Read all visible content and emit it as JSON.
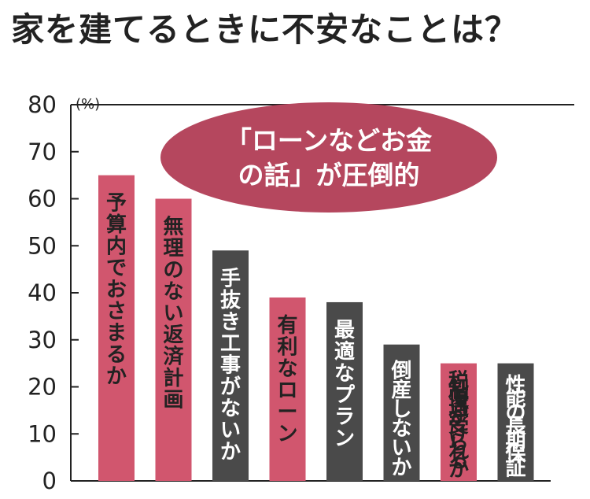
{
  "title": "家を建てるときに不安なことは？",
  "callout": {
    "line1": "「ローンなどお金",
    "line2": "の話」が圧倒的",
    "color": "#b5475e"
  },
  "colors": {
    "highlight": "#d1566e",
    "neutral": "#4a4a4a",
    "text_on_highlight": "#222222",
    "text_on_neutral": "#ffffff"
  },
  "chart_data": {
    "type": "bar",
    "title": "家を建てるときに不安なことは？",
    "ylabel": "(%)",
    "ylim": [
      0,
      80
    ],
    "yticks": [
      0,
      10,
      20,
      30,
      40,
      50,
      60,
      70,
      80
    ],
    "grid": false,
    "categories": [
      "予算内でおさまるか",
      "無理のない返済計画",
      "手抜き工事がないか",
      "有利なローン",
      "最適なプラン",
      "倒産しないか",
      "税制優遇が受けられるか",
      "性能の長期保証"
    ],
    "values": [
      65,
      60,
      49,
      39,
      38,
      29,
      25,
      25
    ],
    "highlight": [
      true,
      true,
      false,
      true,
      false,
      false,
      true,
      false
    ]
  }
}
